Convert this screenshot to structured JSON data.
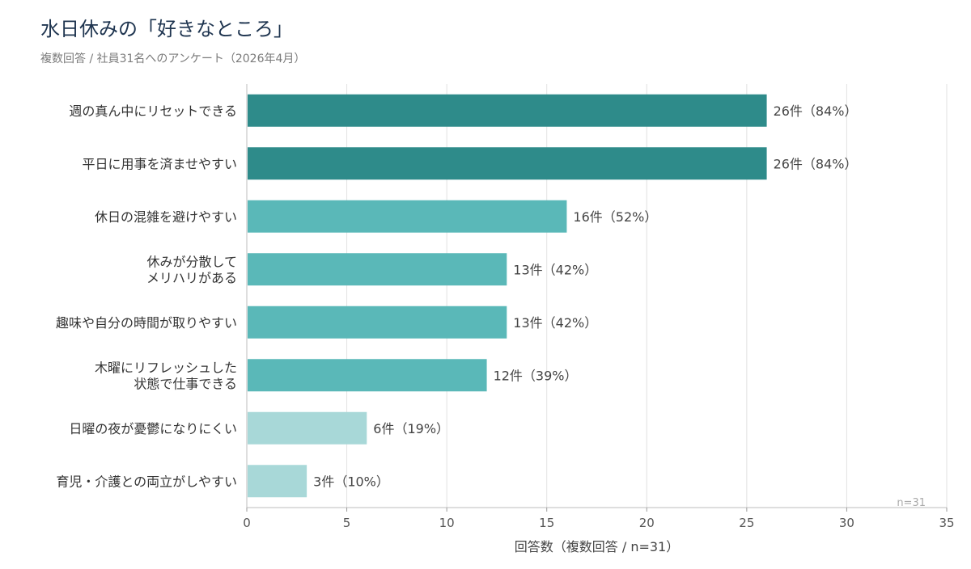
{
  "title": "水日休みの「好きなところ」",
  "subtitle": "複数回答 / 社員31名へのアンケート（2026年4月）",
  "chart_data": {
    "type": "bar",
    "orientation": "horizontal",
    "categories": [
      "週の真ん中にリセットできる",
      "平日に用事を済ませやすい",
      "休日の混雑を避けやすい",
      "休みが分散して\nメリハリがある",
      "趣味や自分の時間が取りやすい",
      "木曜にリフレッシュした\n状態で仕事できる",
      "日曜の夜が憂鬱になりにくい",
      "育児・介護との両立がしやすい"
    ],
    "values": [
      26,
      26,
      16,
      13,
      13,
      12,
      6,
      3
    ],
    "value_labels": [
      "26件（84%）",
      "26件（84%）",
      "16件（52%）",
      "13件（42%）",
      "13件（42%）",
      "12件（39%）",
      "6件（19%）",
      "3件（10%）"
    ],
    "bar_colors": [
      "#2e8b8a",
      "#2e8b8a",
      "#5ab8b8",
      "#5ab8b8",
      "#5ab8b8",
      "#5ab8b8",
      "#a8d8d8",
      "#a8d8d8"
    ],
    "xlabel": "回答数（複数回答 / n=31）",
    "ylabel": "",
    "xlim": [
      0,
      35
    ],
    "xticks": [
      0,
      5,
      10,
      15,
      20,
      25,
      30,
      35
    ],
    "grid": "vertical",
    "annotation": "n=31"
  }
}
